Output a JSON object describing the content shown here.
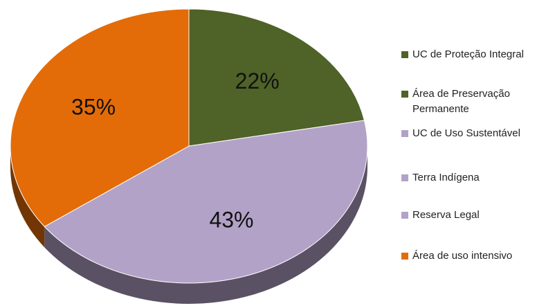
{
  "chart_data": {
    "type": "pie",
    "values": [
      22,
      43,
      35
    ],
    "value_labels": [
      "22%",
      "43%",
      "35%"
    ],
    "colors": [
      "#4f6228",
      "#b3a2c7",
      "#e36c09"
    ],
    "legend": [
      {
        "name": "UC de Proteção Integral",
        "color": "#4f6228"
      },
      {
        "name": "Área de Preservação Permanente",
        "color": "#4f6228"
      },
      {
        "name": "UC de Uso Sustentável",
        "color": "#b3a2c7"
      },
      {
        "name": "Terra Indígena",
        "color": "#b3a2c7"
      },
      {
        "name": "Reserva Legal",
        "color": "#b3a2c7"
      },
      {
        "name": "Área de uso intensivo",
        "color": "#e36c09"
      }
    ]
  }
}
